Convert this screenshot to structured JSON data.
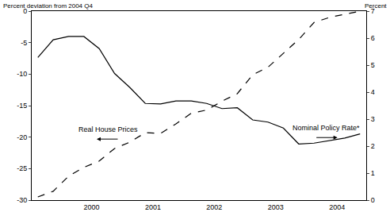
{
  "chart_data": {
    "type": "line",
    "y_label": "Percent deviation from 2004 Q4",
    "y2_label": "Percent",
    "x": [
      1999.5,
      1999.75,
      2000.0,
      2000.25,
      2000.5,
      2000.75,
      2001.0,
      2001.25,
      2001.5,
      2001.75,
      2002.0,
      2002.25,
      2002.5,
      2002.75,
      2003.0,
      2003.25,
      2003.5,
      2003.75,
      2004.0,
      2004.25,
      2004.5,
      2004.75
    ],
    "series": [
      {
        "name": "Real House Prices",
        "color": "#000000",
        "line_style": "dashed",
        "axis": "y",
        "values": [
          -29.5,
          -28.6,
          -26.2,
          -24.8,
          -23.8,
          -21.8,
          -20.8,
          -19.3,
          -19.4,
          -17.9,
          -16.2,
          -15.7,
          -14.3,
          -13.1,
          -10.1,
          -8.9,
          -6.7,
          -4.5,
          -1.8,
          -1.0,
          -0.5,
          0
        ]
      },
      {
        "name": "Nominal Policy Rate*",
        "color": "#000000",
        "line_style": "solid",
        "axis": "y2",
        "values": [
          5.28,
          5.94,
          6.06,
          6.06,
          5.61,
          4.69,
          4.17,
          3.58,
          3.56,
          3.67,
          3.67,
          3.58,
          3.39,
          3.42,
          2.97,
          2.89,
          2.67,
          2.08,
          2.11,
          2.2,
          2.3,
          2.45
        ]
      }
    ],
    "xlim": [
      1999.4,
      2004.85
    ],
    "xticks": [
      {
        "value": 2000.375,
        "label": "2000"
      },
      {
        "value": 2001.375,
        "label": "2001"
      },
      {
        "value": 2002.375,
        "label": "2002"
      },
      {
        "value": 2003.375,
        "label": "2003"
      },
      {
        "value": 2004.375,
        "label": "2004"
      }
    ],
    "ylim": [
      -30,
      0
    ],
    "yticks": [
      -30,
      -25,
      -20,
      -15,
      -10,
      -5,
      0
    ],
    "y2lim": [
      0,
      7
    ],
    "y2ticks": [
      0,
      1,
      2,
      3,
      4,
      5,
      6,
      7
    ],
    "grid": false,
    "annotations": [
      {
        "text": "Real House Prices",
        "x": 2000.64,
        "y": -18.8,
        "axis": "y"
      },
      {
        "text": "Nominal Policy Rate*",
        "x": 2004.2,
        "y": 2.67,
        "axis": "y2"
      }
    ]
  }
}
